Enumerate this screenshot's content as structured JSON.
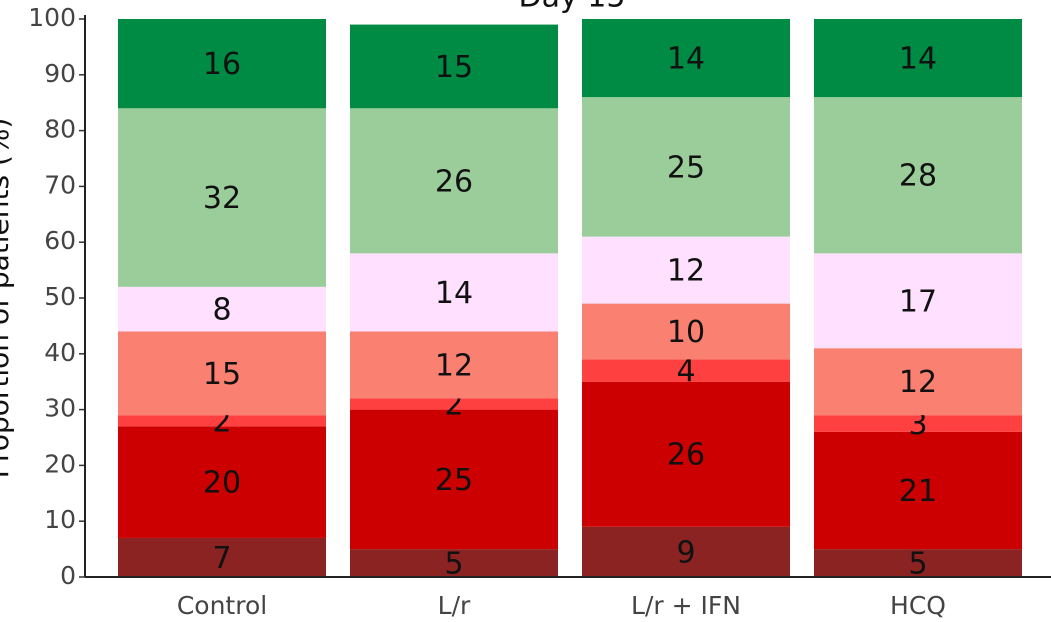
{
  "chart_data": {
    "type": "stacked-bar",
    "title": "Day 15",
    "y_label": "Proportion of patients (%)",
    "categories": [
      "Control",
      "L/r",
      "L/r + IFN",
      "HCQ"
    ],
    "series": [
      {
        "color": "#8b2323",
        "values": [
          7,
          5,
          9,
          5
        ]
      },
      {
        "color": "#cc0000",
        "values": [
          20,
          25,
          26,
          21
        ]
      },
      {
        "color": "#ff4040",
        "values": [
          2,
          2,
          4,
          3
        ]
      },
      {
        "color": "#fa8072",
        "values": [
          15,
          12,
          10,
          12
        ]
      },
      {
        "color": "#ffe1ff",
        "values": [
          8,
          14,
          12,
          17
        ]
      },
      {
        "color": "#9bcd9b",
        "values": [
          32,
          26,
          25,
          28
        ]
      },
      {
        "color": "#008b45",
        "values": [
          16,
          15,
          14,
          14
        ]
      }
    ],
    "ylim": [
      0,
      100
    ],
    "yticks": [
      0,
      10,
      20,
      30,
      40,
      50,
      60,
      70,
      80,
      90,
      100
    ]
  }
}
